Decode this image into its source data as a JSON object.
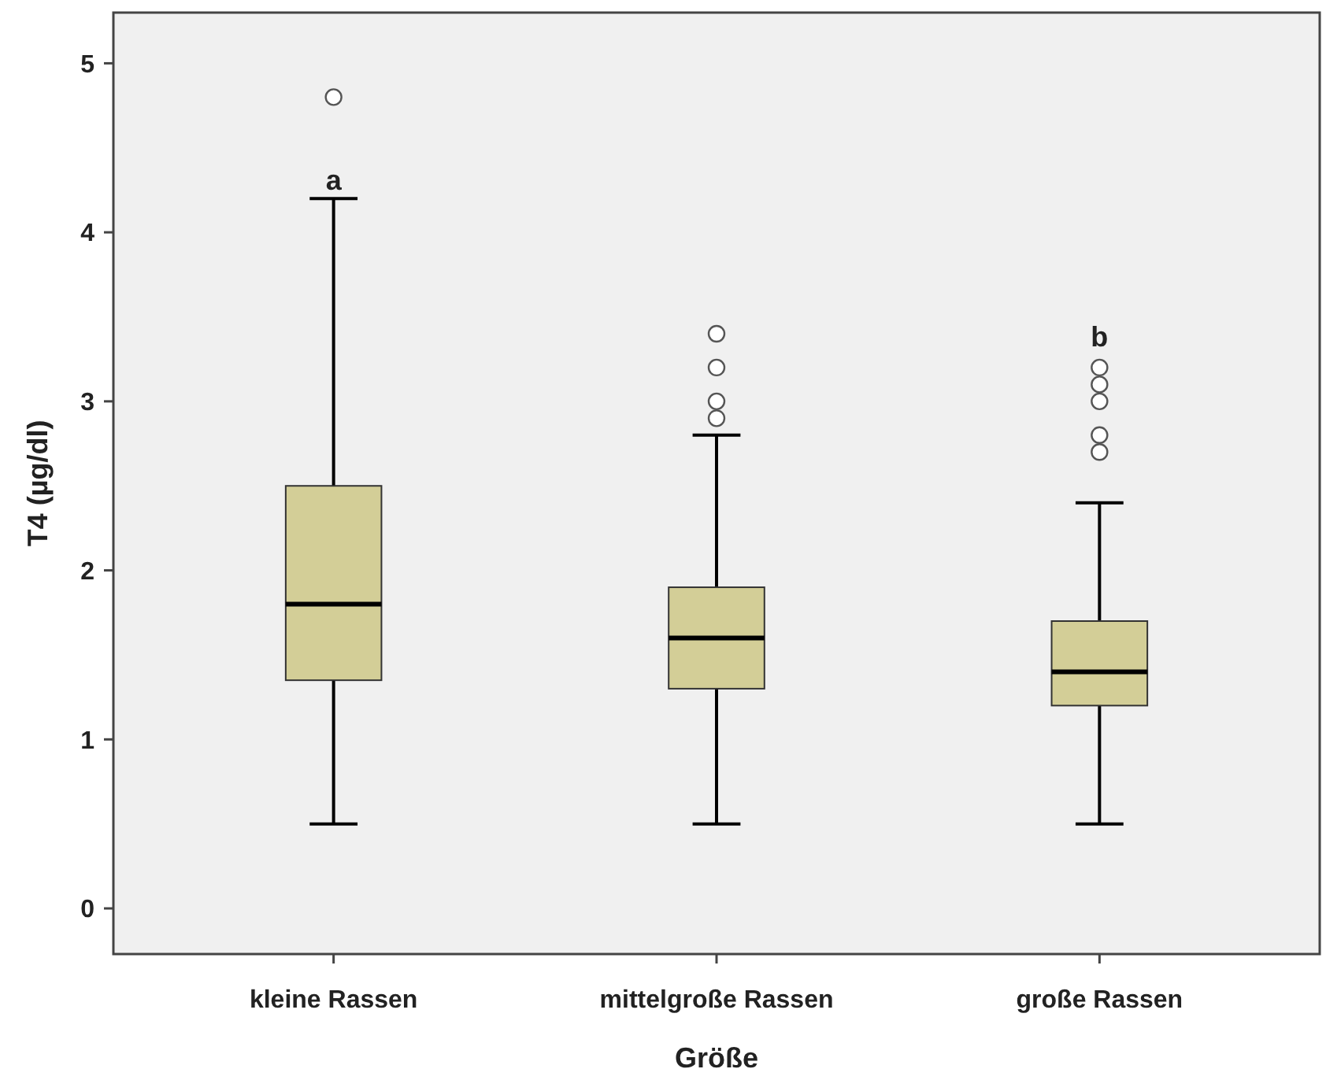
{
  "chart_data": {
    "type": "box",
    "xlabel": "Größe",
    "ylabel": "T4 (µg/dl)",
    "categories": [
      "kleine Rassen",
      "mittelgroße Rassen",
      "große Rassen"
    ],
    "color": "#d3ce97",
    "boxes": [
      {
        "low": 0.5,
        "q1": 1.35,
        "median": 1.8,
        "q3": 2.5,
        "high": 4.2,
        "outliers": [
          4.8
        ]
      },
      {
        "low": 0.5,
        "q1": 1.3,
        "median": 1.6,
        "q3": 1.9,
        "high": 2.8,
        "outliers": [
          3.4,
          3.2,
          3.0,
          2.9
        ]
      },
      {
        "low": 0.5,
        "q1": 1.2,
        "median": 1.4,
        "q3": 1.7,
        "high": 2.4,
        "outliers": [
          3.2,
          3.1,
          3.0,
          2.8,
          2.7
        ]
      }
    ],
    "ylim": [
      -0.27,
      5.3
    ],
    "yticks": [
      0,
      1,
      2,
      3,
      4,
      5
    ],
    "grid": false,
    "annotations": [
      "a",
      "b"
    ]
  }
}
